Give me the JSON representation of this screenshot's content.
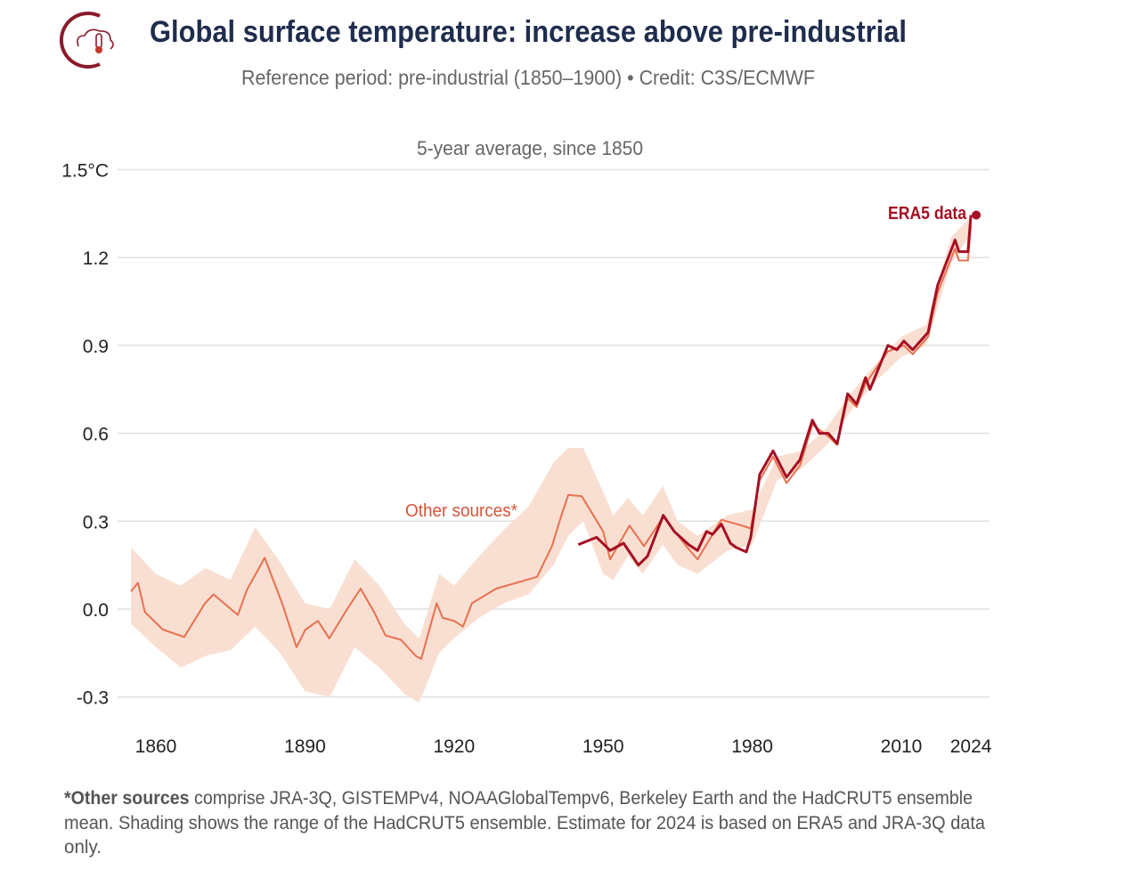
{
  "header": {
    "title": "Global surface temperature: increase above pre-industrial",
    "subtitle": "Reference period: pre-industrial (1850–1900) • Credit: C3S/ECMWF",
    "logo_icon": "cloud-thermometer-icon"
  },
  "footer": {
    "bold": "*Other sources",
    "line1": " comprise JRA-3Q, GISTEMPv4, NOAAGlobalTempv6, Berkeley Earth and the HadCRUT5 ensemble",
    "line2": "mean. Shading shows the range of the HadCRUT5 ensemble. Estimate for 2024 is based on ERA5 and JRA-3Q data",
    "line3": "only."
  },
  "chart_data": {
    "type": "line",
    "title": "5-year average, since 1850",
    "xlabel": "",
    "ylabel": "",
    "xlim": [
      1850,
      2025
    ],
    "ylim": [
      -0.35,
      1.5
    ],
    "x_ticks": [
      1860,
      1890,
      1920,
      1950,
      1980,
      2010,
      2024
    ],
    "y_ticks": [
      -0.3,
      0.0,
      0.3,
      0.6,
      0.9,
      1.2,
      1.5
    ],
    "y_tick_labels": [
      "-0.3",
      "0.0",
      "0.3",
      "0.6",
      "0.9",
      "1.2",
      "1.5°C"
    ],
    "grid": true,
    "colors": {
      "era5": "#a50f23",
      "other": "#e8704f",
      "band": "#f9dfd2",
      "title": "#1f2d4d"
    },
    "series": [
      {
        "name": "ERA5 data",
        "x": [
          1945,
          1948.7,
          1951.4,
          1954.1,
          1957.1,
          1958.9,
          1962.1,
          1964.3,
          1967.2,
          1969,
          1970.8,
          1972,
          1973.8,
          1975.6,
          1976.8,
          1978.8,
          1979.7,
          1981.5,
          1984.2,
          1986.9,
          1989.6,
          1992.1,
          1993.5,
          1995.3,
          1997.1,
          1999.2,
          2001,
          2002.8,
          2003.7,
          2007.3,
          2009.1,
          2010.5,
          2012.3,
          2015.4,
          2016.3,
          2017.3,
          2020.8,
          2021.6,
          2023.4,
          2024
        ],
        "y": [
          0.22,
          0.245,
          0.2,
          0.225,
          0.15,
          0.18,
          0.32,
          0.265,
          0.22,
          0.2,
          0.265,
          0.255,
          0.29,
          0.225,
          0.21,
          0.195,
          0.245,
          0.46,
          0.54,
          0.45,
          0.51,
          0.645,
          0.6,
          0.6,
          0.565,
          0.735,
          0.7,
          0.79,
          0.75,
          0.9,
          0.885,
          0.915,
          0.885,
          0.945,
          1.025,
          1.105,
          1.26,
          1.22,
          1.22,
          1.345
        ]
      },
      {
        "name": "Other sources*",
        "x": [
          1855,
          1856.4,
          1857.8,
          1861.4,
          1865.7,
          1869.9,
          1871.6,
          1876.5,
          1878.3,
          1881.9,
          1885.4,
          1888.3,
          1890.1,
          1892.6,
          1894.9,
          1898.5,
          1901.2,
          1903.9,
          1906.2,
          1909.3,
          1912.3,
          1913.4,
          1915.2,
          1916.5,
          1917.7,
          1920,
          1921.8,
          1923.6,
          1928.5,
          1932.6,
          1936.7,
          1939.7,
          1941.5,
          1943,
          1945.7,
          1950,
          1951.4,
          1955.3,
          1958.2,
          1962.1,
          1967.2,
          1969,
          1973.8,
          1977.9,
          1979.7,
          1981.5,
          1984.2,
          1986.9,
          1989.6,
          1992.1,
          1995.3,
          1997.1,
          1999.2,
          2001,
          2002.8,
          2007.3,
          2010.5,
          2012.3,
          2015.4,
          2017.3,
          2020.8,
          2021.6,
          2023.4,
          2024
        ],
        "y": [
          0.06,
          0.09,
          -0.01,
          -0.07,
          -0.095,
          0.02,
          0.05,
          -0.02,
          0.065,
          0.175,
          0.02,
          -0.13,
          -0.07,
          -0.04,
          -0.1,
          0.0,
          0.07,
          -0.01,
          -0.09,
          -0.105,
          -0.16,
          -0.17,
          -0.06,
          0.02,
          -0.03,
          -0.04,
          -0.06,
          0.02,
          0.07,
          0.09,
          0.11,
          0.215,
          0.315,
          0.39,
          0.385,
          0.265,
          0.17,
          0.285,
          0.215,
          0.315,
          0.205,
          0.17,
          0.305,
          0.285,
          0.275,
          0.44,
          0.52,
          0.43,
          0.49,
          0.63,
          0.59,
          0.56,
          0.72,
          0.69,
          0.77,
          0.88,
          0.9,
          0.87,
          0.93,
          1.08,
          1.23,
          1.19,
          1.19,
          1.31
        ]
      }
    ],
    "band": {
      "x": [
        1855,
        1860,
        1865,
        1870,
        1875,
        1880,
        1885,
        1890,
        1895,
        1900,
        1905,
        1910,
        1913,
        1917,
        1920,
        1925,
        1930,
        1935,
        1940,
        1943,
        1946,
        1950,
        1952,
        1955,
        1958,
        1962,
        1965,
        1969,
        1975,
        1980,
        1985,
        1990,
        1995,
        2000,
        2005,
        2010,
        2015,
        2020,
        2024
      ],
      "low": [
        -0.05,
        -0.13,
        -0.2,
        -0.16,
        -0.14,
        -0.06,
        -0.15,
        -0.28,
        -0.3,
        -0.13,
        -0.2,
        -0.29,
        -0.32,
        -0.15,
        -0.1,
        -0.03,
        0.02,
        0.05,
        0.15,
        0.25,
        0.3,
        0.12,
        0.1,
        0.18,
        0.12,
        0.22,
        0.15,
        0.12,
        0.2,
        0.22,
        0.44,
        0.48,
        0.56,
        0.68,
        0.78,
        0.86,
        0.9,
        1.18,
        1.28
      ],
      "high": [
        0.21,
        0.12,
        0.08,
        0.14,
        0.1,
        0.28,
        0.16,
        0.02,
        0.0,
        0.17,
        0.08,
        -0.05,
        -0.1,
        0.12,
        0.08,
        0.18,
        0.27,
        0.35,
        0.5,
        0.55,
        0.55,
        0.4,
        0.32,
        0.38,
        0.32,
        0.42,
        0.3,
        0.25,
        0.32,
        0.34,
        0.52,
        0.54,
        0.62,
        0.74,
        0.84,
        0.93,
        0.97,
        1.27,
        1.34
      ]
    },
    "annotations": [
      "ERA5 data",
      "Other sources*"
    ]
  }
}
